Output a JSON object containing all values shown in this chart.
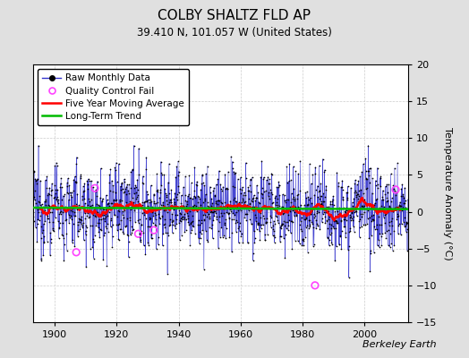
{
  "title": "COLBY SHALTZ FLD AP",
  "subtitle": "39.410 N, 101.057 W (United States)",
  "ylabel": "Temperature Anomaly (°C)",
  "watermark": "Berkeley Earth",
  "xlim": [
    1893,
    2014
  ],
  "ylim": [
    -15,
    20
  ],
  "yticks": [
    -15,
    -10,
    -5,
    0,
    5,
    10,
    15,
    20
  ],
  "xticks": [
    1900,
    1920,
    1940,
    1960,
    1980,
    2000
  ],
  "bg_color": "#e0e0e0",
  "plot_bg_color": "#ffffff",
  "raw_line_color": "#3333cc",
  "raw_dot_color": "#000000",
  "qc_color": "#ff44ff",
  "moving_avg_color": "#ff0000",
  "trend_color": "#00bb00",
  "seed": 12345,
  "start_year": 1893,
  "end_year": 2013,
  "noise_amplitude": 2.8,
  "qc_fail_years": [
    1907,
    1913,
    1927,
    1932,
    1984,
    2010
  ],
  "qc_fail_vals": [
    -5.5,
    3.2,
    -3.0,
    -2.5,
    -10.0,
    3.0
  ]
}
